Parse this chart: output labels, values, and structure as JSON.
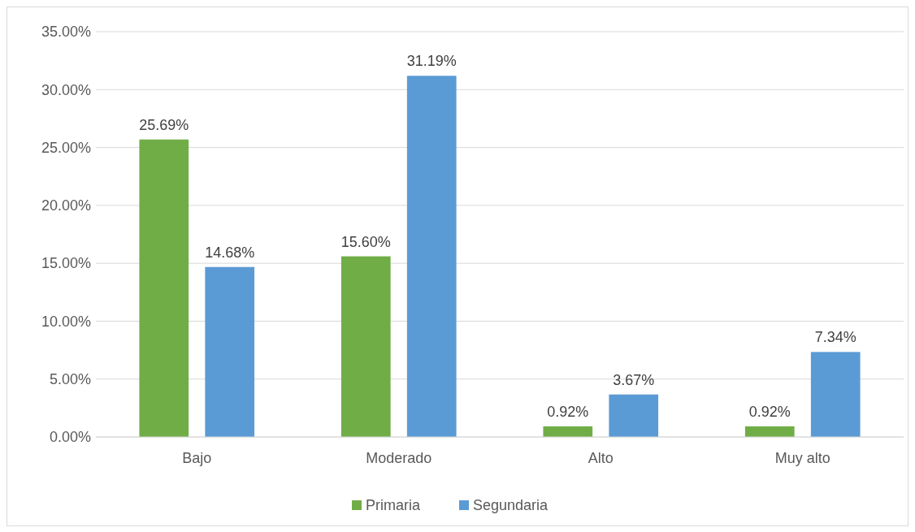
{
  "chart_data": {
    "type": "bar",
    "categories": [
      "Bajo",
      "Moderado",
      "Alto",
      "Muy alto"
    ],
    "series": [
      {
        "name": "Primaria",
        "color": "#70ad47",
        "values": [
          25.69,
          15.6,
          0.92,
          0.92
        ],
        "value_labels": [
          "25.69%",
          "15.60%",
          "0.92%",
          "0.92%"
        ]
      },
      {
        "name": "Segundaria",
        "color": "#5b9bd5",
        "values": [
          14.68,
          31.19,
          3.67,
          7.34
        ],
        "value_labels": [
          "14.68%",
          "31.19%",
          "3.67%",
          "7.34%"
        ]
      }
    ],
    "ylim": [
      0,
      35
    ],
    "yticks": [
      {
        "value": 0,
        "label": "0.00%"
      },
      {
        "value": 5,
        "label": "5.00%"
      },
      {
        "value": 10,
        "label": "10.00%"
      },
      {
        "value": 15,
        "label": "15.00%"
      },
      {
        "value": 20,
        "label": "20.00%"
      },
      {
        "value": 25,
        "label": "25.00%"
      },
      {
        "value": 30,
        "label": "30.00%"
      },
      {
        "value": 35,
        "label": "35.00%"
      }
    ],
    "grid": "y",
    "legend": "bottom"
  }
}
